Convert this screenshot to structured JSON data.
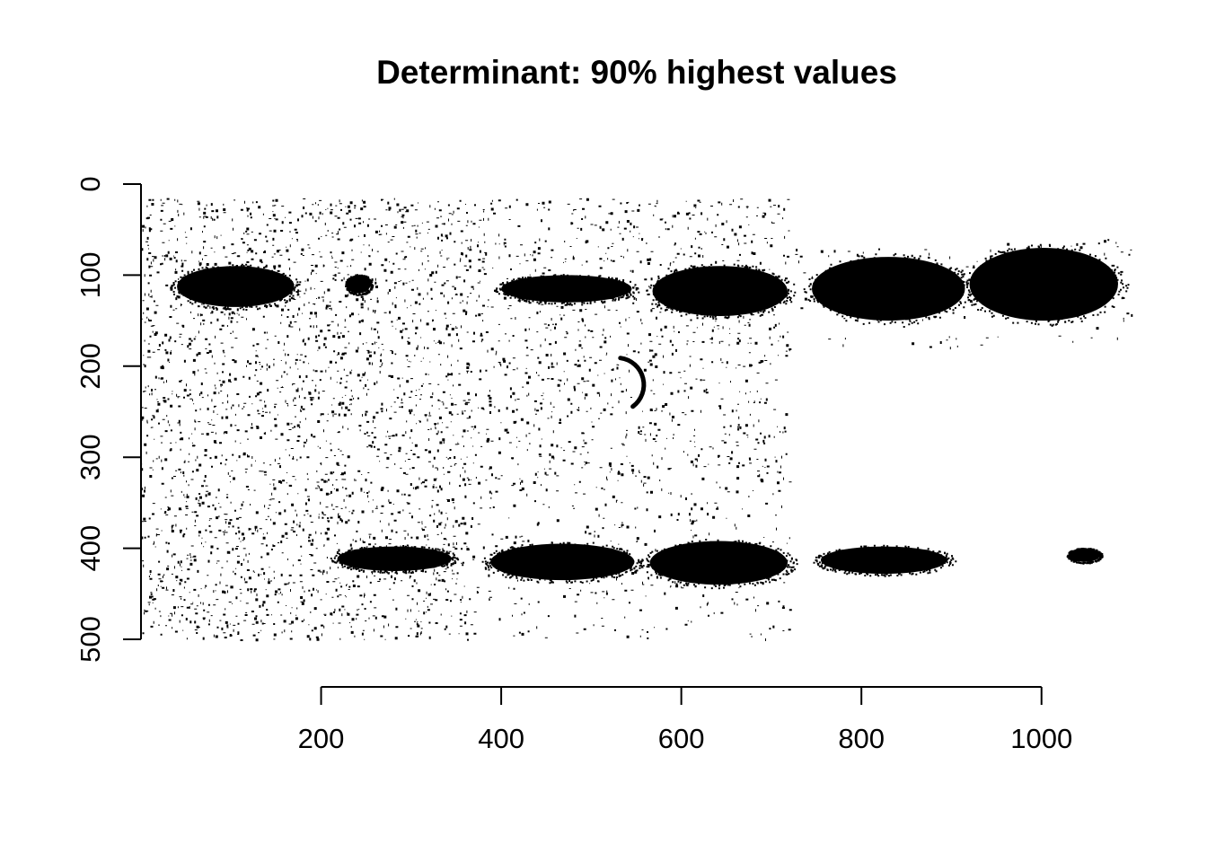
{
  "chart_data": {
    "type": "heatmap",
    "title": "Determinant: 90% highest values",
    "xlabel": "",
    "ylabel": "",
    "xlim": [
      0,
      1100
    ],
    "ylim": [
      0,
      500
    ],
    "y_reversed": true,
    "x_ticks": [
      200,
      400,
      600,
      800,
      1000
    ],
    "x_tick_labels": [
      "200",
      "400",
      "600",
      "800",
      "1000"
    ],
    "y_ticks": [
      0,
      100,
      200,
      300,
      400,
      500
    ],
    "y_tick_labels": [
      "0",
      "100",
      "200",
      "300",
      "400",
      "500"
    ],
    "grid": false,
    "legend": "none",
    "colors": {
      "foreground": "#000000",
      "background": "#ffffff"
    },
    "bands": [
      {
        "x": [
          40,
          170
        ],
        "y": [
          90,
          135
        ]
      },
      {
        "x": [
          228,
          255
        ],
        "y": [
          100,
          120
        ]
      },
      {
        "x": [
          400,
          545
        ],
        "y": [
          100,
          130
        ]
      },
      {
        "x": [
          568,
          718
        ],
        "y": [
          90,
          145
        ]
      },
      {
        "x": [
          745,
          915
        ],
        "y": [
          80,
          150
        ]
      },
      {
        "x": [
          920,
          1085
        ],
        "y": [
          70,
          150
        ]
      },
      {
        "x": [
          218,
          345
        ],
        "y": [
          398,
          425
        ]
      },
      {
        "x": [
          388,
          548
        ],
        "y": [
          395,
          435
        ]
      },
      {
        "x": [
          565,
          718
        ],
        "y": [
          392,
          440
        ]
      },
      {
        "x": [
          755,
          895
        ],
        "y": [
          398,
          428
        ]
      },
      {
        "x": [
          1030,
          1065
        ],
        "y": [
          400,
          415
        ]
      }
    ],
    "speckle_regions": [
      {
        "x": [
          0,
          370
        ],
        "y": [
          15,
          500
        ],
        "density": 0.85
      },
      {
        "x": [
          370,
          720
        ],
        "y": [
          15,
          330
        ],
        "density": 0.55
      },
      {
        "x": [
          370,
          720
        ],
        "y": [
          330,
          500
        ],
        "density": 0.3
      },
      {
        "x": [
          720,
          1100
        ],
        "y": [
          60,
          180
        ],
        "density": 0.15
      }
    ],
    "arc": {
      "cx": 550,
      "cy": 215,
      "r": 30
    }
  }
}
